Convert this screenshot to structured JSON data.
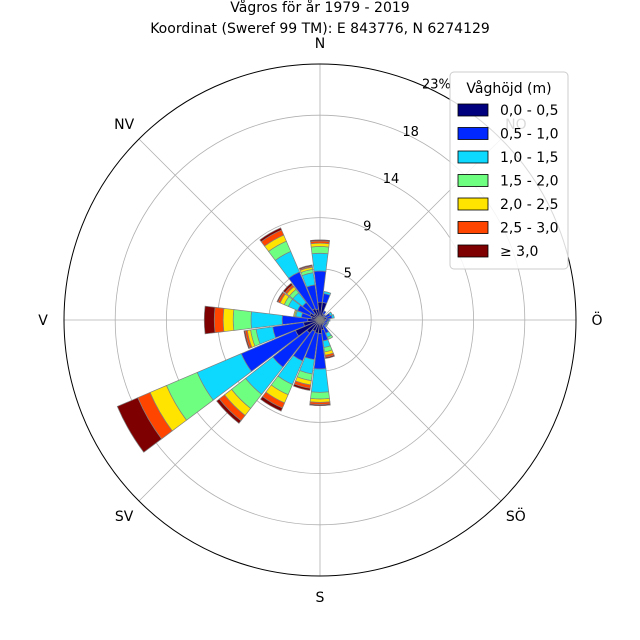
{
  "chart_data": {
    "type": "windrose",
    "title_line1": "Vågros för år 1979 - 2019",
    "title_line2": "Koordinat (Sweref 99 TM): E 843776, N 6274129",
    "directions": [
      "N",
      "NO",
      "Ö",
      "SÖ",
      "S",
      "SV",
      "V",
      "NV"
    ],
    "radial_ticks": [
      "5",
      "9",
      "14",
      "18",
      "23%"
    ],
    "radial_tick_values": [
      4.6,
      9.2,
      13.8,
      18.4,
      23.0
    ],
    "rmax": 23.0,
    "sector_width_deg": 15,
    "bins": [
      {
        "name": "0,0 - 0,5",
        "color": "#00007f"
      },
      {
        "name": "0,5 - 1,0",
        "color": "#0028ff"
      },
      {
        "name": "1,0 - 1,5",
        "color": "#0dd9ff"
      },
      {
        "name": "1,5 - 2,0",
        "color": "#6fff80"
      },
      {
        "name": "2,0 - 2,5",
        "color": "#ffe400"
      },
      {
        "name": "2,5 - 3,0",
        "color": "#ff4500"
      },
      {
        "name": "≥ 3,0",
        "color": "#7f0000"
      }
    ],
    "legend_title": "Våghöjd (m)",
    "legend_position": "top-right",
    "sectors": [
      {
        "dir_deg": 0,
        "values": [
          1.6,
          2.8,
          1.6,
          0.6,
          0.3,
          0.2,
          0.1
        ]
      },
      {
        "dir_deg": 15,
        "values": [
          1.6,
          0.8,
          0.2,
          0.0,
          0.0,
          0.0,
          0.0
        ]
      },
      {
        "dir_deg": 30,
        "values": [
          0.6,
          0.3,
          0.0,
          0.0,
          0.0,
          0.0,
          0.0
        ]
      },
      {
        "dir_deg": 45,
        "values": [
          0.4,
          0.2,
          0.0,
          0.0,
          0.0,
          0.0,
          0.0
        ]
      },
      {
        "dir_deg": 60,
        "values": [
          0.5,
          0.5,
          0.2,
          0.0,
          0.0,
          0.0,
          0.0
        ]
      },
      {
        "dir_deg": 75,
        "values": [
          0.6,
          0.5,
          0.2,
          0.0,
          0.0,
          0.0,
          0.0
        ]
      },
      {
        "dir_deg": 90,
        "values": [
          0.5,
          0.3,
          0.1,
          0.0,
          0.0,
          0.0,
          0.0
        ]
      },
      {
        "dir_deg": 105,
        "values": [
          0.4,
          0.3,
          0.1,
          0.0,
          0.0,
          0.0,
          0.0
        ]
      },
      {
        "dir_deg": 120,
        "values": [
          0.4,
          0.3,
          0.1,
          0.0,
          0.0,
          0.0,
          0.0
        ]
      },
      {
        "dir_deg": 135,
        "values": [
          0.4,
          0.3,
          0.1,
          0.0,
          0.0,
          0.0,
          0.0
        ]
      },
      {
        "dir_deg": 150,
        "values": [
          0.5,
          0.8,
          0.4,
          0.2,
          0.0,
          0.0,
          0.0
        ]
      },
      {
        "dir_deg": 165,
        "values": [
          0.9,
          1.0,
          0.6,
          0.4,
          0.3,
          0.2,
          0.1
        ]
      },
      {
        "dir_deg": 180,
        "values": [
          1.2,
          3.2,
          2.1,
          0.6,
          0.3,
          0.2,
          0.1
        ]
      },
      {
        "dir_deg": 195,
        "values": [
          1.2,
          2.4,
          1.3,
          0.6,
          0.4,
          0.3,
          0.2
        ]
      },
      {
        "dir_deg": 210,
        "values": [
          1.1,
          2.9,
          2.3,
          1.0,
          0.8,
          0.5,
          0.3
        ]
      },
      {
        "dir_deg": 225,
        "values": [
          1.5,
          3.9,
          3.1,
          1.6,
          0.8,
          0.6,
          0.3
        ]
      },
      {
        "dir_deg": 240,
        "values": [
          2.4,
          5.3,
          4.3,
          3.0,
          1.6,
          1.2,
          2.0
        ]
      },
      {
        "dir_deg": 255,
        "values": [
          1.5,
          2.8,
          1.5,
          0.5,
          0.3,
          0.2,
          0.1
        ]
      },
      {
        "dir_deg": 270,
        "values": [
          1.1,
          2.3,
          2.8,
          1.6,
          0.9,
          0.8,
          0.9
        ]
      },
      {
        "dir_deg": 285,
        "values": [
          0.8,
          0.9,
          0.5,
          0.1,
          0.1,
          0.0,
          0.0
        ]
      },
      {
        "dir_deg": 300,
        "values": [
          1.0,
          1.2,
          0.9,
          0.4,
          0.4,
          0.2,
          0.1
        ]
      },
      {
        "dir_deg": 315,
        "values": [
          0.7,
          1.3,
          1.1,
          0.4,
          0.3,
          0.2,
          0.2
        ]
      },
      {
        "dir_deg": 330,
        "values": [
          1.1,
          3.6,
          2.0,
          1.0,
          0.6,
          0.5,
          0.2
        ]
      },
      {
        "dir_deg": 345,
        "values": [
          1.0,
          2.2,
          1.1,
          0.3,
          0.2,
          0.1,
          0.1
        ]
      }
    ]
  }
}
